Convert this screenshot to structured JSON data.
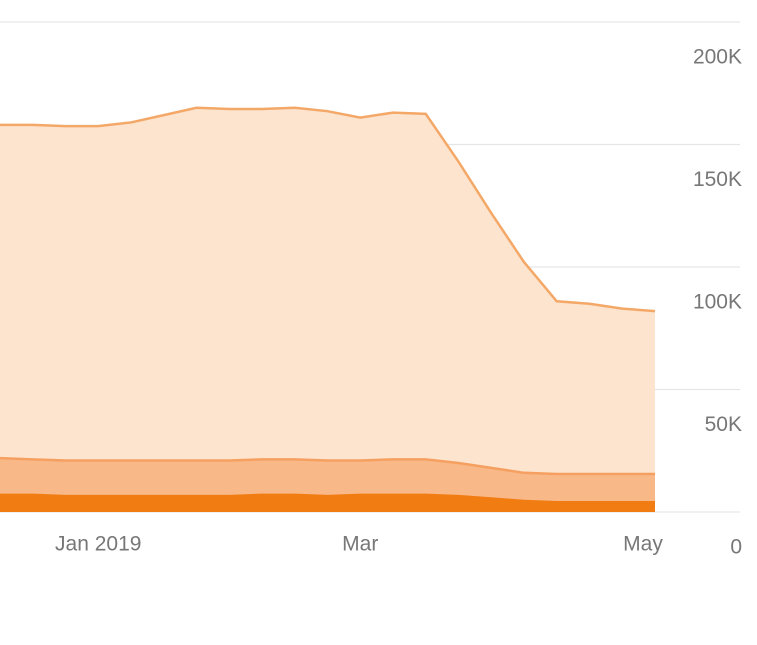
{
  "chart_data": {
    "type": "stacked-area",
    "categories": [
      null,
      null,
      null,
      "Jan 2019",
      null,
      null,
      null,
      null,
      null,
      null,
      null,
      "Mar",
      null,
      null,
      null,
      null,
      null,
      null,
      null,
      null,
      "May"
    ],
    "series": [
      {
        "color": "#f07c12",
        "fill": "#f07c12",
        "values": [
          7000,
          7000,
          6500,
          6500,
          6500,
          6500,
          6500,
          6500,
          7000,
          7000,
          6500,
          7000,
          7000,
          7000,
          6500,
          5500,
          4500,
          4000,
          4000,
          4000,
          4000
        ]
      },
      {
        "color": "#f5a060",
        "fill": "#f9b887",
        "values": [
          15000,
          14500,
          14500,
          14500,
          14500,
          14500,
          14500,
          14500,
          14500,
          14500,
          14500,
          14000,
          14500,
          14500,
          13500,
          12500,
          11500,
          11500,
          11500,
          11500,
          11500
        ]
      },
      {
        "color": "#f4a868",
        "fill": "#fde4cf",
        "values": [
          136000,
          136500,
          136500,
          136500,
          138000,
          141000,
          144000,
          143500,
          143000,
          143500,
          142600,
          140000,
          141500,
          141000,
          123000,
          104000,
          86000,
          70500,
          69500,
          67500,
          66500
        ]
      }
    ],
    "ylim": [
      0,
      200000
    ],
    "yticks": [
      0,
      {
        "value": 50000,
        "label": "50K"
      },
      {
        "value": 100000,
        "label": "100K"
      },
      {
        "value": 150000,
        "label": "150K"
      },
      {
        "value": 200000,
        "label": "200K"
      }
    ],
    "grid": true
  }
}
